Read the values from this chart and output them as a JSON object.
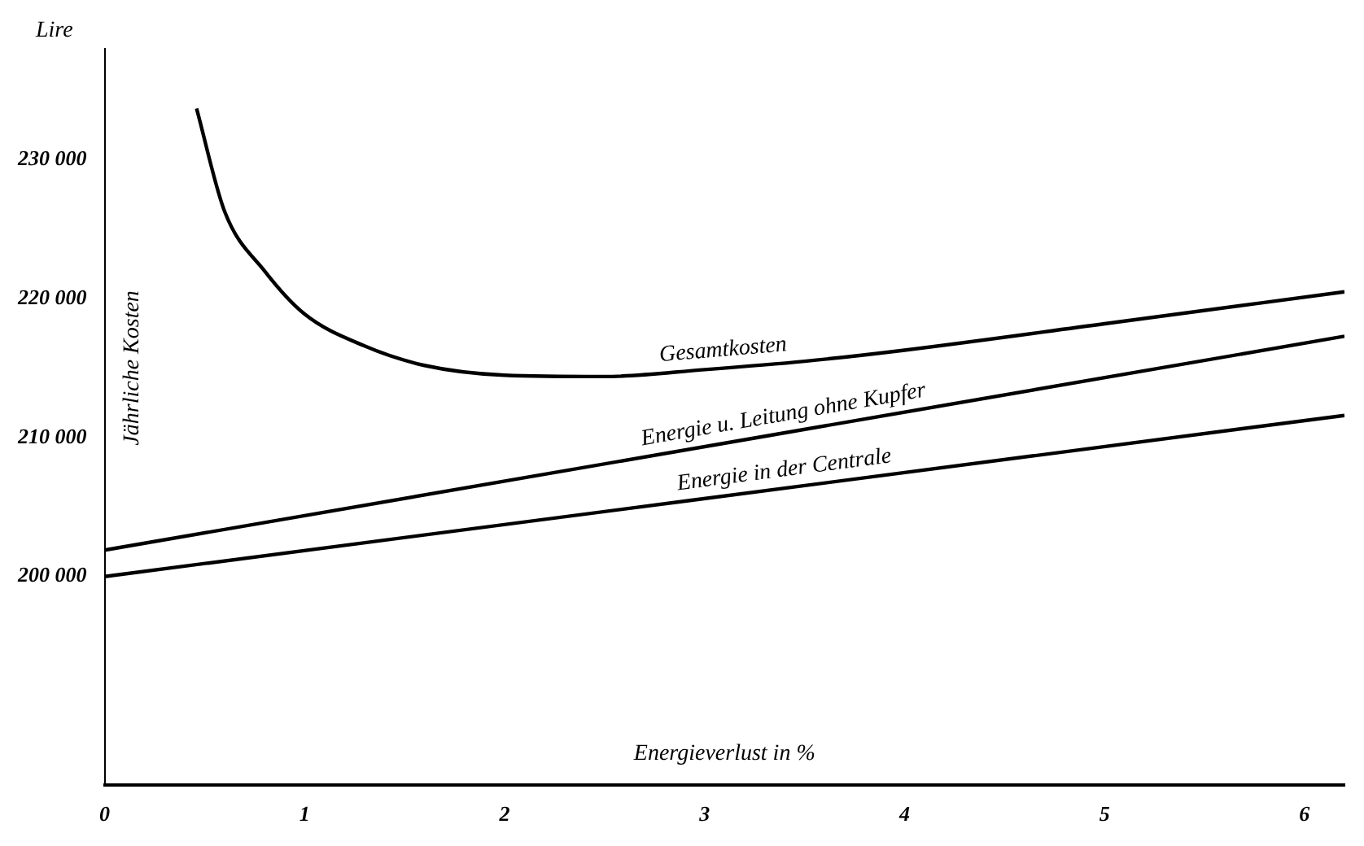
{
  "chart_data": {
    "type": "line",
    "xlabel": "Energieverlust in %",
    "ylabel": "Jährliche Kosten",
    "annotations": [
      "Lire"
    ],
    "xlim": [
      0,
      6.2
    ],
    "ylim": [
      185000,
      238000
    ],
    "xticks": [
      0,
      1,
      2,
      3,
      4,
      5,
      6
    ],
    "yticks": [
      {
        "value": 200000,
        "label": "200 000"
      },
      {
        "value": 210000,
        "label": "210 000"
      },
      {
        "value": 220000,
        "label": "220 000"
      },
      {
        "value": 230000,
        "label": "230 000"
      }
    ],
    "grid": false,
    "legend": false,
    "marker": "none",
    "line_style": "solid",
    "series": [
      {
        "name": "Gesamtkosten",
        "color": "#000000",
        "x": [
          0.46,
          0.6,
          0.8,
          1.0,
          1.3,
          1.6,
          2.0,
          2.5,
          3.0,
          3.5,
          4.0,
          5.0,
          6.2
        ],
        "values": [
          233700,
          226300,
          222000,
          218900,
          216600,
          215200,
          214500,
          214400,
          214900,
          215500,
          216300,
          218200,
          220500
        ]
      },
      {
        "name": "Energie u. Leitung ohne Kupfer",
        "color": "#000000",
        "x": [
          0,
          6.2
        ],
        "values": [
          201900,
          217300
        ]
      },
      {
        "name": "Energie in der Centrale",
        "color": "#000000",
        "x": [
          0,
          6.2
        ],
        "values": [
          200000,
          211600
        ]
      }
    ]
  }
}
